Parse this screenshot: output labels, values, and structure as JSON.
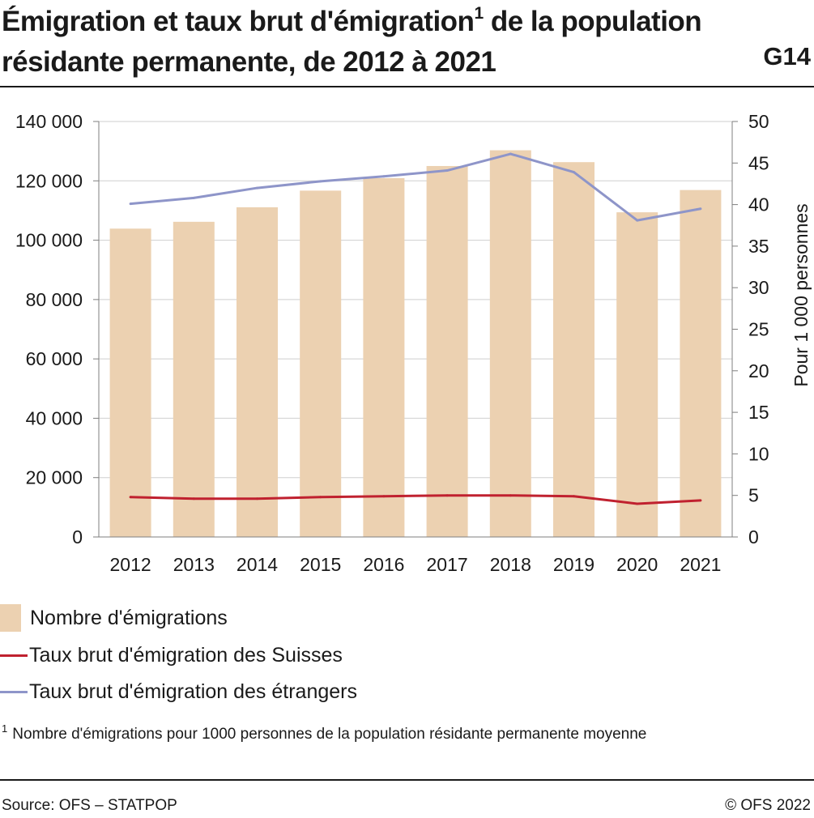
{
  "header": {
    "title_main": "Émigration et taux brut d'émigration",
    "title_sup": "1",
    "title_rest": " de la population résidante permanente, de 2012 à 2021",
    "graphic_code": "G14"
  },
  "chart_data": {
    "type": "bar",
    "title": "Émigration et taux brut d'émigration de la population résidante permanente, de 2012 à 2021",
    "categories": [
      "2012",
      "2013",
      "2014",
      "2015",
      "2016",
      "2017",
      "2018",
      "2019",
      "2020",
      "2021"
    ],
    "bars": {
      "name": "Nombre d'émigrations",
      "color": "#ecd1b1",
      "values": [
        103900,
        106200,
        111100,
        116700,
        120900,
        125000,
        130300,
        126300,
        109400,
        116900
      ]
    },
    "series": [
      {
        "name": "Taux brut d'émigration des Suisses",
        "color": "#c0212f",
        "values": [
          4.8,
          4.6,
          4.6,
          4.8,
          4.9,
          5.0,
          5.0,
          4.9,
          4.0,
          4.4
        ]
      },
      {
        "name": "Taux brut d'émigration des étrangers",
        "color": "#8e95c9",
        "values": [
          40.1,
          40.8,
          42.0,
          42.8,
          43.4,
          44.1,
          46.1,
          43.9,
          38.1,
          39.5
        ]
      }
    ],
    "left_axis": {
      "ylim": [
        0,
        140000
      ],
      "ticks": [
        0,
        20000,
        40000,
        60000,
        80000,
        100000,
        120000,
        140000
      ],
      "tick_labels": [
        "0",
        "20 000",
        "40 000",
        "60 000",
        "80 000",
        "100 000",
        "120 000",
        "140 000"
      ]
    },
    "right_axis": {
      "label": "Pour 1 000 personnes",
      "ylim": [
        0,
        50
      ],
      "ticks": [
        0,
        5,
        10,
        15,
        20,
        25,
        30,
        35,
        40,
        45,
        50
      ],
      "tick_labels": [
        "0",
        "5",
        "10",
        "15",
        "20",
        "25",
        "30",
        "35",
        "40",
        "45",
        "50"
      ]
    },
    "grid": true,
    "legend_placement": "bottom"
  },
  "legend": {
    "bars_label": "Nombre d'émigrations",
    "suisses_label": "Taux brut d'émigration des Suisses",
    "etrangers_label": "Taux brut d'émigration des étrangers"
  },
  "footnote": {
    "marker": "1",
    "text": "Nombre d'émigrations pour 1000 personnes de la population résidante permanente moyenne"
  },
  "footer": {
    "source": "Source: OFS – STATPOP",
    "copyright": "© OFS 2022"
  }
}
